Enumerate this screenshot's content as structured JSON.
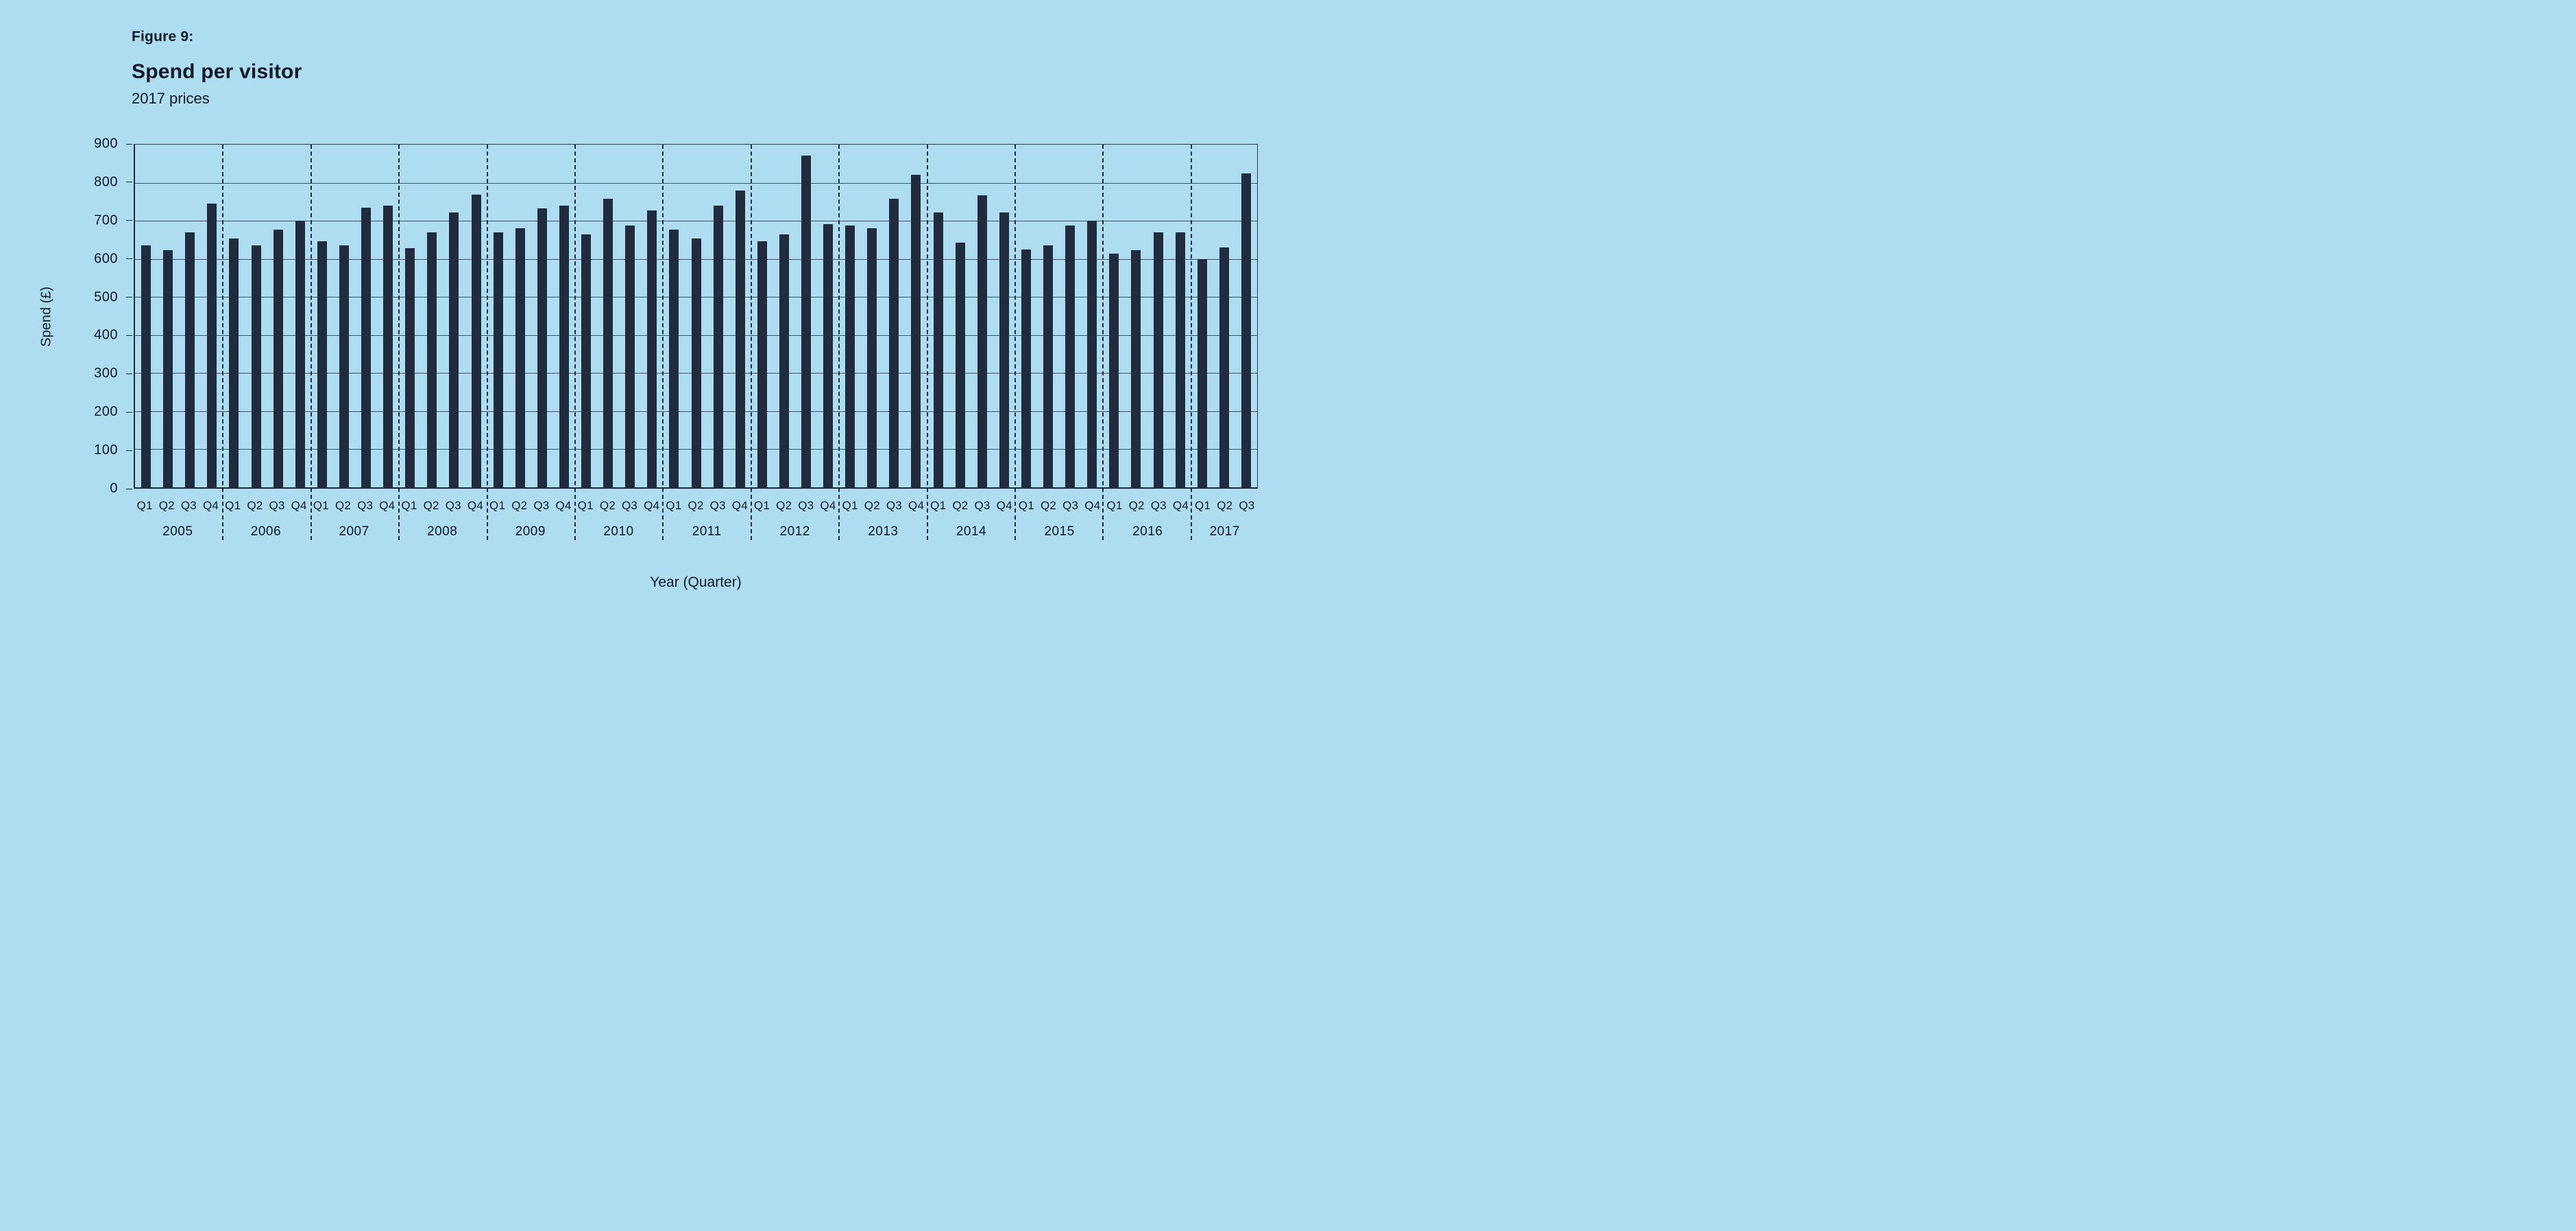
{
  "figure": {
    "label": "Figure 9:",
    "title": "Spend per visitor",
    "subtitle": "2017 prices"
  },
  "colors": {
    "background": "#aedcf0",
    "bar": "#202c3e",
    "axis": "#1f2a3c",
    "gridline": "#40536a",
    "text": "#111a26"
  },
  "chart_data": {
    "type": "bar",
    "title": "Spend per visitor",
    "subtitle": "2017 prices",
    "xlabel": "Year (Quarter)",
    "ylabel": "Spend (£)",
    "ylim": [
      0,
      900
    ],
    "yticks": [
      0,
      100,
      200,
      300,
      400,
      500,
      600,
      700,
      800,
      900
    ],
    "grid": true,
    "legend": "none",
    "year_separator_style": "dashed",
    "groups": [
      {
        "year": "2005",
        "quarters": [
          "Q1",
          "Q2",
          "Q3",
          "Q4"
        ],
        "values": [
          635,
          622,
          670,
          745
        ]
      },
      {
        "year": "2006",
        "quarters": [
          "Q1",
          "Q2",
          "Q3",
          "Q4"
        ],
        "values": [
          653,
          635,
          676,
          700
        ]
      },
      {
        "year": "2007",
        "quarters": [
          "Q1",
          "Q2",
          "Q3",
          "Q4"
        ],
        "values": [
          646,
          635,
          734,
          740
        ]
      },
      {
        "year": "2008",
        "quarters": [
          "Q1",
          "Q2",
          "Q3",
          "Q4"
        ],
        "values": [
          629,
          670,
          722,
          768
        ]
      },
      {
        "year": "2009",
        "quarters": [
          "Q1",
          "Q2",
          "Q3",
          "Q4"
        ],
        "values": [
          670,
          681,
          733,
          739
        ]
      },
      {
        "year": "2010",
        "quarters": [
          "Q1",
          "Q2",
          "Q3",
          "Q4"
        ],
        "values": [
          664,
          757,
          687,
          728
        ]
      },
      {
        "year": "2011",
        "quarters": [
          "Q1",
          "Q2",
          "Q3",
          "Q4"
        ],
        "values": [
          676,
          653,
          739,
          780
        ]
      },
      {
        "year": "2012",
        "quarters": [
          "Q1",
          "Q2",
          "Q3",
          "Q4"
        ],
        "values": [
          647,
          664,
          872,
          692
        ]
      },
      {
        "year": "2013",
        "quarters": [
          "Q1",
          "Q2",
          "Q3",
          "Q4"
        ],
        "values": [
          687,
          680,
          757,
          821
        ]
      },
      {
        "year": "2014",
        "quarters": [
          "Q1",
          "Q2",
          "Q3",
          "Q4"
        ],
        "values": [
          722,
          642,
          767,
          721
        ]
      },
      {
        "year": "2015",
        "quarters": [
          "Q1",
          "Q2",
          "Q3",
          "Q4"
        ],
        "values": [
          624,
          635,
          687,
          700
        ]
      },
      {
        "year": "2016",
        "quarters": [
          "Q1",
          "Q2",
          "Q3",
          "Q4"
        ],
        "values": [
          613,
          623,
          670,
          669
        ]
      },
      {
        "year": "2017",
        "quarters": [
          "Q1",
          "Q2",
          "Q3"
        ],
        "values": [
          600,
          630,
          824
        ]
      }
    ]
  }
}
